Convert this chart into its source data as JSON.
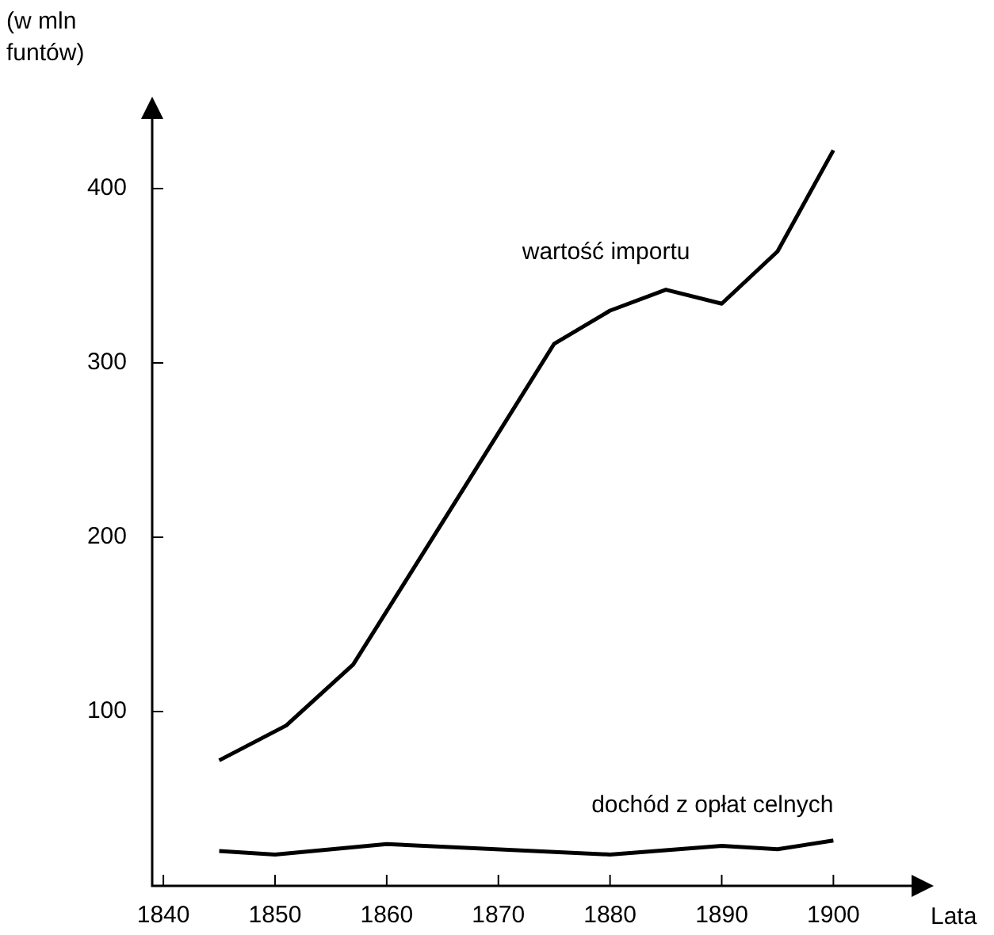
{
  "chart_data": {
    "type": "line",
    "ylabel": "(w mln\nfuntów)",
    "xlabel": "Lata",
    "xlim": [
      1839,
      1907
    ],
    "xticks": [
      1840,
      1850,
      1860,
      1870,
      1880,
      1890,
      1900
    ],
    "ylim": [
      0,
      440
    ],
    "yticks": [
      100,
      200,
      300,
      400
    ],
    "grid": false,
    "legend": false,
    "marker": "none",
    "line_style": "solid",
    "series": [
      {
        "name": "wartość importu",
        "color": "#000000",
        "x": [
          1845,
          1851,
          1857,
          1867,
          1875,
          1880,
          1885,
          1890,
          1895,
          1900
        ],
        "values": [
          72,
          92,
          127,
          229,
          311,
          330,
          342,
          334,
          364,
          422
        ]
      },
      {
        "name": "dochód z opłat celnych",
        "color": "#000000",
        "x": [
          1845,
          1850,
          1860,
          1880,
          1890,
          1895,
          1900
        ],
        "values": [
          20,
          18,
          24,
          18,
          23,
          21,
          26
        ]
      }
    ]
  }
}
